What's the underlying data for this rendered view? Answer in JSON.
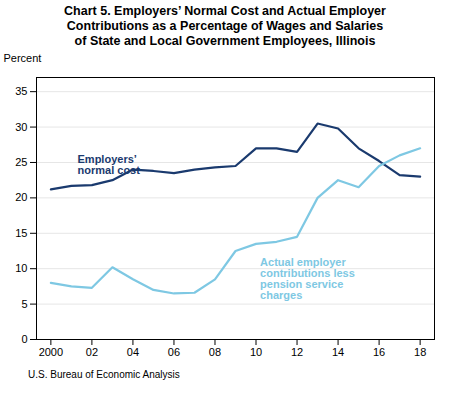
{
  "chart_data": {
    "type": "line",
    "title": "Chart 5. Employers’ Normal Cost and Actual Employer\nContributions as a Percentage of Wages and Salaries\nof State and Local Government Employees, Illinois",
    "ylabel": "Percent",
    "footnote": "U.S. Bureau of Economic Analysis",
    "x": [
      2000,
      2001,
      2002,
      2003,
      2004,
      2005,
      2006,
      2007,
      2008,
      2009,
      2010,
      2011,
      2012,
      2013,
      2014,
      2015,
      2016,
      2017,
      2018
    ],
    "series": [
      {
        "color": "#1a3a6e",
        "values": [
          21.2,
          21.7,
          21.8,
          22.5,
          24.0,
          23.8,
          23.5,
          24.0,
          24.3,
          24.5,
          27.0,
          27.0,
          26.5,
          30.5,
          29.8,
          27.0,
          25.2,
          23.2,
          23.0
        ]
      },
      {
        "color": "#7ec8e3",
        "values": [
          8.0,
          7.5,
          7.3,
          10.2,
          8.5,
          7.0,
          6.5,
          6.6,
          8.5,
          12.5,
          13.5,
          13.8,
          14.5,
          20.0,
          22.5,
          21.5,
          24.5,
          26.0,
          27.0
        ]
      }
    ],
    "annotations": [
      {
        "text": "Employers’\nnormal cost",
        "x": 2001.3,
        "y": 26.0,
        "color": "#1a3a6e"
      },
      {
        "text": "Actual employer\ncontributions less\npension service\ncharges",
        "x": 2010.2,
        "y": 11.5,
        "color": "#7ec8e3"
      }
    ],
    "xlim": [
      1999.3,
      2018.7
    ],
    "ylim": [
      0,
      37
    ],
    "xticks": [
      2000,
      {
        "value": 2002,
        "label": "02"
      },
      {
        "value": 2004,
        "label": "04"
      },
      {
        "value": 2006,
        "label": "06"
      },
      {
        "value": 2008,
        "label": "08"
      },
      {
        "value": 2010,
        "label": "10"
      },
      {
        "value": 2012,
        "label": "12"
      },
      {
        "value": 2014,
        "label": "14"
      },
      {
        "value": 2016,
        "label": "16"
      },
      {
        "value": 2018,
        "label": "18"
      }
    ],
    "yticks": [
      0,
      5,
      10,
      15,
      20,
      25,
      30,
      35
    ],
    "grid": "y"
  }
}
